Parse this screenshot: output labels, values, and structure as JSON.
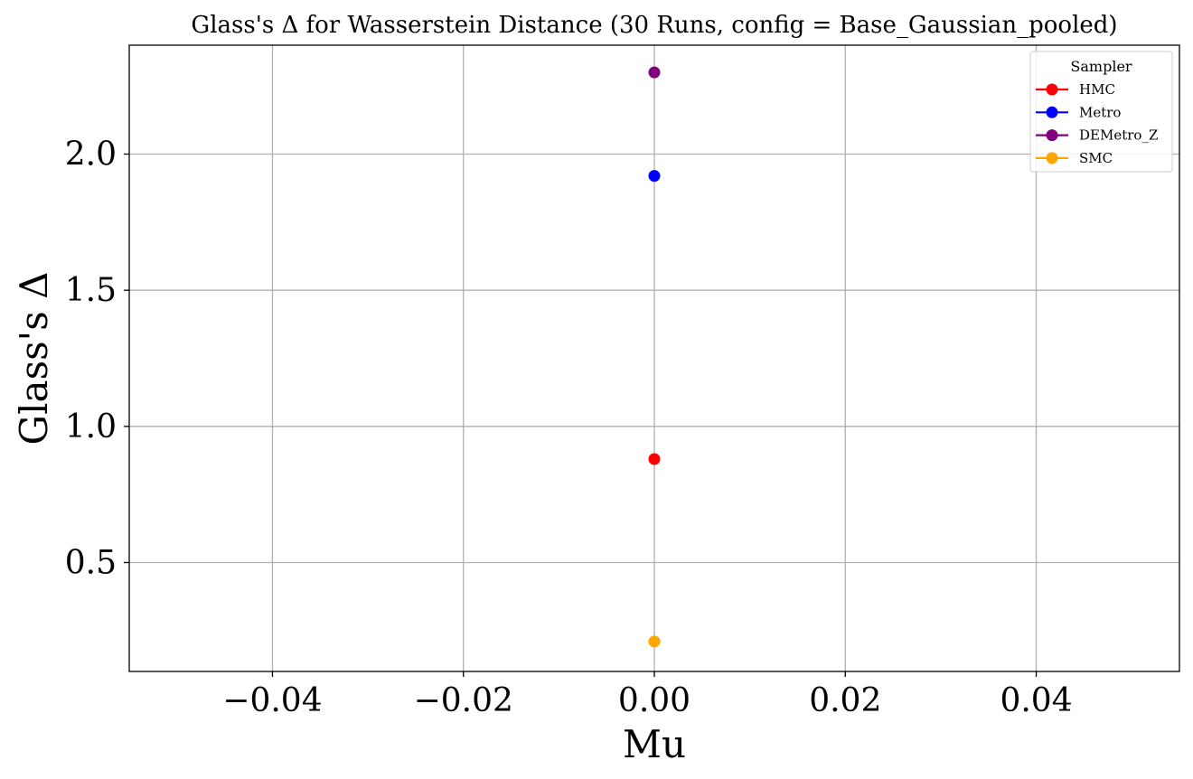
{
  "chart_data": {
    "type": "line",
    "title": "Glass's Δ for Wasserstein Distance (30 Runs, config = Base_Gaussian_pooled)",
    "xlabel": "Mu",
    "ylabel": "Glass's Δ",
    "xlim": [
      -0.055,
      0.055
    ],
    "ylim": [
      0.1,
      2.4
    ],
    "xticks": [
      -0.04,
      -0.02,
      0.0,
      0.02,
      0.04
    ],
    "xtick_labels": [
      "−0.04",
      "−0.02",
      "0.00",
      "0.02",
      "0.04"
    ],
    "yticks": [
      0.5,
      1.0,
      1.5,
      2.0
    ],
    "ytick_labels": [
      "0.5",
      "1.0",
      "1.5",
      "2.0"
    ],
    "grid": true,
    "legend": {
      "title": "Sampler",
      "placement": "top-right"
    },
    "series": [
      {
        "name": "HMC",
        "color": "#ff0000",
        "x": [
          0.0
        ],
        "y": [
          0.88
        ]
      },
      {
        "name": "Metro",
        "color": "#0000ff",
        "x": [
          0.0
        ],
        "y": [
          1.92
        ]
      },
      {
        "name": "DEMetro_Z",
        "color": "#800080",
        "x": [
          0.0
        ],
        "y": [
          2.3
        ]
      },
      {
        "name": "SMC",
        "color": "#ffa500",
        "x": [
          0.0
        ],
        "y": [
          0.21
        ]
      }
    ]
  }
}
